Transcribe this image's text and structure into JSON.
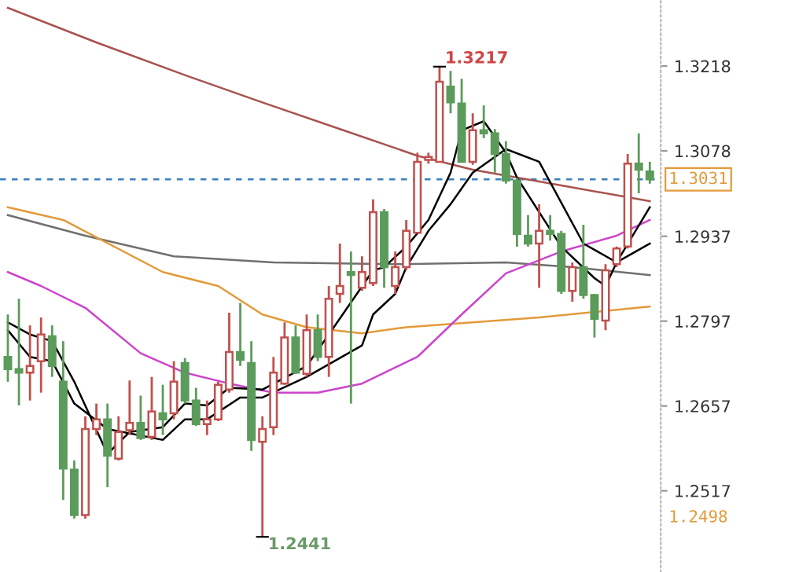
{
  "chart_data": {
    "type": "candlestick",
    "categories": [
      null,
      null,
      null,
      null,
      null,
      null,
      null,
      null,
      null,
      null,
      null,
      null,
      null,
      null,
      null,
      null,
      null,
      null,
      null,
      null,
      null,
      null,
      null,
      null,
      null,
      null,
      null,
      null,
      null,
      null,
      null,
      null,
      null,
      null,
      null,
      null,
      null,
      null,
      null,
      null,
      null,
      null,
      null,
      null,
      null,
      null,
      null,
      null,
      null,
      null,
      null,
      null,
      null,
      null,
      null,
      null,
      null,
      null,
      null
    ],
    "ohlc": [
      [
        1.2738,
        1.2808,
        1.2697,
        1.2718
      ],
      [
        1.2718,
        1.2834,
        1.2658,
        1.2712
      ],
      [
        1.2712,
        1.279,
        1.2666,
        1.2723
      ],
      [
        1.2731,
        1.2803,
        1.2679,
        1.2775
      ],
      [
        1.2772,
        1.279,
        1.2705,
        1.2723
      ],
      [
        1.2697,
        1.2764,
        1.2502,
        1.2554
      ],
      [
        1.2552,
        1.2567,
        1.2471,
        1.2477
      ],
      [
        1.2477,
        1.264,
        1.2471,
        1.2619
      ],
      [
        1.2619,
        1.2661,
        1.2609,
        1.2635
      ],
      [
        1.2635,
        1.2661,
        1.2523,
        1.2575
      ],
      [
        1.257,
        1.264,
        1.2567,
        1.2614
      ],
      [
        1.2617,
        1.2699,
        1.2609,
        1.2629
      ],
      [
        1.2629,
        1.2674,
        1.2601,
        1.2604
      ],
      [
        1.2606,
        1.2705,
        1.2601,
        1.2648
      ],
      [
        1.2645,
        1.2692,
        1.2609,
        1.2635
      ],
      [
        1.2645,
        1.2731,
        1.2635,
        1.2697
      ],
      [
        1.2728,
        1.2736,
        1.2661,
        1.2666
      ],
      [
        1.2666,
        1.2687,
        1.2624,
        1.2627
      ],
      [
        1.2627,
        1.2666,
        1.2609,
        1.2635
      ],
      [
        1.2635,
        1.2697,
        1.2632,
        1.2692
      ],
      [
        1.2684,
        1.2811,
        1.2679,
        1.2746
      ],
      [
        1.2746,
        1.2827,
        1.2723,
        1.2733
      ],
      [
        1.2728,
        1.2764,
        1.2583,
        1.2601
      ],
      [
        1.2598,
        1.264,
        1.2441,
        1.2619
      ],
      [
        1.2622,
        1.2738,
        1.2609,
        1.2712
      ],
      [
        1.2694,
        1.2795,
        1.2692,
        1.277
      ],
      [
        1.277,
        1.279,
        1.271,
        1.2712
      ],
      [
        1.271,
        1.2808,
        1.2705,
        1.2782
      ],
      [
        1.2782,
        1.2808,
        1.2731,
        1.2738
      ],
      [
        1.2738,
        1.2855,
        1.2705,
        1.2834
      ],
      [
        1.2842,
        1.2925,
        1.2827,
        1.2855
      ],
      [
        1.2878,
        1.2912,
        1.2661,
        1.2873
      ],
      [
        1.2852,
        1.2904,
        1.2847,
        1.2878
      ],
      [
        1.286,
        1.2998,
        1.2855,
        1.2977
      ],
      [
        1.2977,
        1.2982,
        1.2852,
        1.2886
      ],
      [
        1.2855,
        1.2912,
        1.2842,
        1.2886
      ],
      [
        1.2886,
        1.2964,
        1.2881,
        1.2946
      ],
      [
        1.2943,
        1.3075,
        1.2943,
        1.306
      ],
      [
        1.3063,
        1.3075,
        1.3057,
        1.3068
      ],
      [
        1.306,
        1.3217,
        1.306,
        1.3192
      ],
      [
        1.3184,
        1.321,
        1.314,
        1.3158
      ],
      [
        1.3156,
        1.3197,
        1.306,
        1.306
      ],
      [
        1.306,
        1.314,
        1.3055,
        1.3112
      ],
      [
        1.3112,
        1.3153,
        1.3099,
        1.3107
      ],
      [
        1.3107,
        1.3114,
        1.3042,
        1.3073
      ],
      [
        1.3073,
        1.3094,
        1.3024,
        1.3029
      ],
      [
        1.3029,
        1.3034,
        1.292,
        1.2941
      ],
      [
        1.2938,
        1.2972,
        1.292,
        1.2925
      ],
      [
        1.2925,
        1.299,
        1.2852,
        1.2946
      ],
      [
        1.2946,
        1.2972,
        1.293,
        1.2941
      ],
      [
        1.2941,
        1.2946,
        1.2842,
        1.2847
      ],
      [
        1.2847,
        1.2894,
        1.2829,
        1.2886
      ],
      [
        1.2886,
        1.2956,
        1.2834,
        1.284
      ],
      [
        1.284,
        1.2842,
        1.277,
        1.2801
      ],
      [
        1.2798,
        1.2891,
        1.2782,
        1.2881
      ],
      [
        1.2891,
        1.292,
        1.2886,
        1.2917
      ],
      [
        1.292,
        1.3073,
        1.2917,
        1.3057
      ],
      [
        1.3057,
        1.3107,
        1.3008,
        1.3047
      ],
      [
        1.3044,
        1.306,
        1.3024,
        1.3031
      ]
    ],
    "colors": [
      "#5b9b5b",
      "#5b9b5b",
      "#c0504d",
      "#c0504d",
      "#5b9b5b",
      "#5b9b5b",
      "#5b9b5b",
      "#c0504d",
      "#c0504d",
      "#5b9b5b",
      "#c0504d",
      "#c0504d",
      "#5b9b5b",
      "#c0504d",
      "#5b9b5b",
      "#c0504d",
      "#5b9b5b",
      "#5b9b5b",
      "#c0504d",
      "#c0504d",
      "#c0504d",
      "#5b9b5b",
      "#5b9b5b",
      "#c0504d",
      "#c0504d",
      "#c0504d",
      "#5b9b5b",
      "#c0504d",
      "#5b9b5b",
      "#c0504d",
      "#c0504d",
      "#5b9b5b",
      "#c0504d",
      "#c0504d",
      "#5b9b5b",
      "#c0504d",
      "#c0504d",
      "#c0504d",
      "#c0504d",
      "#c0504d",
      "#5b9b5b",
      "#5b9b5b",
      "#c0504d",
      "#5b9b5b",
      "#5b9b5b",
      "#5b9b5b",
      "#5b9b5b",
      "#5b9b5b",
      "#c0504d",
      "#5b9b5b",
      "#5b9b5b",
      "#c0504d",
      "#5b9b5b",
      "#5b9b5b",
      "#c0504d",
      "#c0504d",
      "#c0504d",
      "#5b9b5b",
      "#5b9b5b"
    ],
    "series": [
      {
        "type": "line",
        "color": "#a8524e",
        "values": [
          1.3314,
          null,
          null,
          null,
          null,
          null,
          null,
          null,
          1.3257,
          null,
          null,
          null,
          null,
          null,
          null,
          null,
          1.3203,
          null,
          null,
          null,
          null,
          null,
          null,
          1.3158,
          null,
          null,
          null,
          null,
          null,
          null,
          1.3114,
          null,
          null,
          null,
          null,
          null,
          null,
          1.307,
          null,
          null,
          null,
          null,
          1.3047,
          null,
          null,
          null,
          null,
          null,
          null,
          null,
          1.3021,
          null,
          null,
          null,
          null,
          null,
          null,
          null,
          1.2995
        ]
      },
      {
        "type": "line",
        "color": "#707070",
        "values": [
          1.2972,
          null,
          null,
          null,
          null,
          null,
          null,
          1.2938,
          null,
          null,
          null,
          null,
          null,
          null,
          null,
          1.2904,
          null,
          null,
          null,
          null,
          null,
          null,
          null,
          null,
          1.2894,
          null,
          null,
          null,
          null,
          null,
          null,
          null,
          null,
          null,
          null,
          1.2891,
          null,
          null,
          null,
          null,
          null,
          null,
          null,
          null,
          null,
          1.2894,
          null,
          null,
          null,
          null,
          null,
          1.2886,
          null,
          null,
          null,
          null,
          null,
          null,
          1.2873
        ]
      },
      {
        "type": "line",
        "color": "#e39a3a",
        "values": [
          1.2985,
          null,
          null,
          null,
          null,
          1.2964,
          null,
          null,
          null,
          null,
          null,
          null,
          null,
          null,
          1.2878,
          null,
          null,
          null,
          null,
          1.2855,
          null,
          null,
          null,
          1.2808,
          null,
          null,
          null,
          1.2787,
          null,
          null,
          null,
          null,
          1.2777,
          null,
          null,
          null,
          1.2787,
          null,
          null,
          null,
          null,
          null,
          1.2795,
          null,
          null,
          null,
          null,
          null,
          1.2803,
          null,
          null,
          null,
          null,
          null,
          null,
          null,
          null,
          null,
          1.2821
        ]
      },
      {
        "type": "line",
        "color": "#cc44cc",
        "values": [
          1.2878,
          null,
          null,
          1.2855,
          null,
          null,
          null,
          1.2819,
          null,
          null,
          null,
          null,
          1.2744,
          null,
          null,
          null,
          1.2712,
          null,
          null,
          null,
          1.2694,
          null,
          null,
          null,
          1.2679,
          null,
          null,
          null,
          1.2679,
          null,
          null,
          null,
          1.2694,
          null,
          null,
          null,
          null,
          1.2738,
          null,
          null,
          null,
          1.2808,
          null,
          null,
          null,
          1.2876,
          null,
          null,
          null,
          null,
          1.2912,
          null,
          null,
          null,
          null,
          1.2938,
          null,
          null,
          1.2964
        ]
      },
      {
        "type": "line",
        "color": "#000000",
        "values": [
          1.2795,
          null,
          1.2775,
          null,
          1.2764,
          null,
          1.2697,
          null,
          null,
          1.2578,
          null,
          1.2614,
          null,
          null,
          1.2622,
          null,
          1.2661,
          null,
          1.2658,
          null,
          1.2687,
          null,
          null,
          1.2684,
          null,
          null,
          null,
          1.2723,
          null,
          1.2775,
          null,
          null,
          null,
          1.2881,
          1.2886,
          null,
          1.292,
          null,
          1.2964,
          null,
          1.3042,
          1.3112,
          null,
          1.3127,
          null,
          1.3075,
          1.3034,
          null,
          null,
          null,
          1.292,
          null,
          null,
          1.2868,
          1.2855,
          1.2894,
          null,
          null,
          1.2985
        ]
      },
      {
        "type": "line",
        "color": "#000000",
        "values": [
          1.2782,
          null,
          1.2738,
          null,
          1.2731,
          null,
          1.2661,
          null,
          null,
          1.2619,
          null,
          null,
          null,
          null,
          1.2601,
          null,
          1.2635,
          null,
          1.2635,
          null,
          null,
          1.2671,
          null,
          1.2671,
          null,
          null,
          null,
          1.2705,
          null,
          null,
          null,
          null,
          1.2757,
          1.2808,
          null,
          1.2842,
          1.2886,
          null,
          1.2946,
          null,
          1.299,
          null,
          1.3042,
          null,
          null,
          1.3081,
          null,
          null,
          1.306,
          null,
          null,
          null,
          1.2925,
          null,
          null,
          1.2894,
          null,
          null,
          1.2925
        ]
      }
    ],
    "ylim": [
      1.2383,
      1.3327
    ],
    "yticks": [
      1.2517,
      1.2657,
      1.2797,
      1.2937,
      1.3078,
      1.3218
    ],
    "ref_lines": [
      {
        "axis": "y",
        "value": 1.3031,
        "label": "1.3031",
        "color": "#3a7fbf",
        "line_style": "dashed"
      }
    ],
    "annotations": [
      "1.3217",
      "1.2441",
      "1.2498"
    ],
    "grid": false,
    "legend": false
  }
}
